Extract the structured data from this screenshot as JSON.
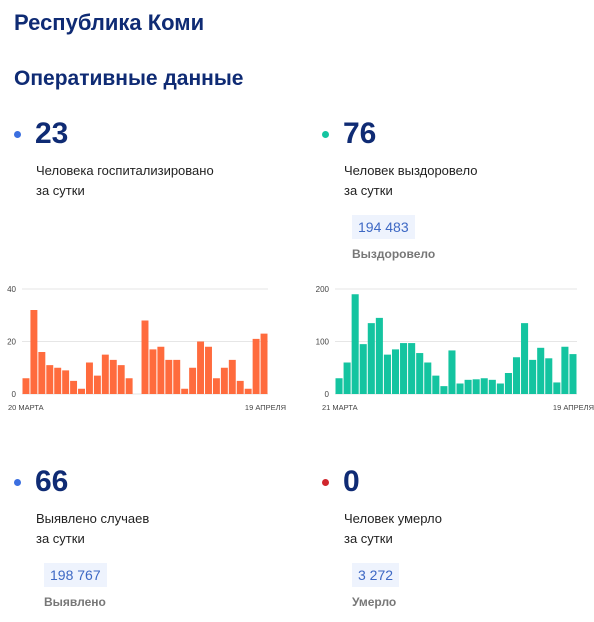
{
  "region": "Республика Коми",
  "section_title": "Оперативные данные",
  "stats": {
    "hospitalized": {
      "value": "23",
      "line1": "Человека госпитализировано",
      "line2": "за сутки",
      "dot_color": "#3b6fe0"
    },
    "recovered": {
      "value": "76",
      "line1": "Человек выздоровело",
      "line2": "за сутки",
      "total": "194 483",
      "total_label": "Выздоровело",
      "dot_color": "#14c4a0"
    },
    "detected": {
      "value": "66",
      "line1": "Выявлено случаев",
      "line2": "за сутки",
      "total": "198 767",
      "total_label": "Выявлено",
      "dot_color": "#3b6fe0"
    },
    "died": {
      "value": "0",
      "line1": "Человек умерло",
      "line2": "за сутки",
      "total": "3 272",
      "total_label": "Умерло",
      "dot_color": "#d0262d"
    }
  },
  "chart_data": [
    {
      "type": "bar",
      "name": "hospitalized",
      "color": "#ff6b3d",
      "ylim": [
        0,
        40
      ],
      "yticks": [
        "0",
        "20",
        "40"
      ],
      "x_start_label": "20 МАРТА",
      "x_end_label": "19 АПРЕЛЯ",
      "values": [
        6,
        32,
        16,
        11,
        10,
        9,
        5,
        2,
        12,
        7,
        15,
        13,
        11,
        6,
        null,
        28,
        17,
        18,
        13,
        13,
        2,
        10,
        20,
        18,
        6,
        10,
        13,
        5,
        2,
        21,
        23
      ]
    },
    {
      "type": "bar",
      "name": "recovered",
      "color": "#14c4a0",
      "ylim": [
        0,
        200
      ],
      "yticks": [
        "0",
        "100",
        "200"
      ],
      "x_start_label": "21 МАРТА",
      "x_end_label": "19 АПРЕЛЯ",
      "values": [
        30,
        60,
        190,
        95,
        135,
        145,
        75,
        85,
        97,
        97,
        78,
        60,
        35,
        15,
        83,
        20,
        27,
        28,
        30,
        27,
        20,
        40,
        70,
        135,
        65,
        88,
        68,
        22,
        90,
        76
      ]
    }
  ]
}
